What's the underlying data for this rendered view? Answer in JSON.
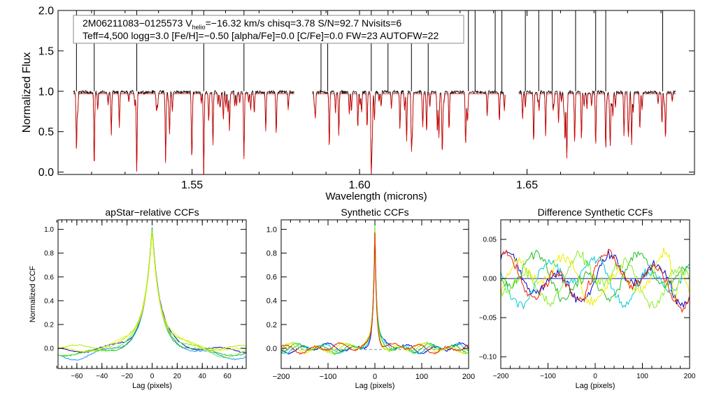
{
  "chart_data": [
    {
      "type": "line",
      "name": "spectrum",
      "xlabel": "Wavelength (microns)",
      "ylabel": "Normalized Flux",
      "xlim": [
        1.51,
        1.7
      ],
      "ylim": [
        -0.03,
        2.0
      ],
      "xticks": [
        {
          "value": 1.55,
          "label": "1.55"
        },
        {
          "value": 1.6,
          "label": "1.60"
        },
        {
          "value": 1.65,
          "label": "1.65"
        }
      ],
      "yticks": [
        {
          "value": 0.0,
          "label": "0.0"
        },
        {
          "value": 0.5,
          "label": "0.5"
        },
        {
          "value": 1.0,
          "label": "1.0"
        },
        {
          "value": 1.5,
          "label": "1.5"
        },
        {
          "value": 2.0,
          "label": "2.0"
        }
      ],
      "chips": [
        [
          1.5145,
          1.5805
        ],
        [
          1.586,
          1.6435
        ],
        [
          1.6475,
          1.6945
        ]
      ],
      "series": [
        {
          "name": "observed",
          "color": "#000000"
        },
        {
          "name": "model",
          "color": "#e00000"
        }
      ],
      "legend": {
        "id_pre": "2M06211083−0125573  V",
        "v_sub": "helio",
        "id_post": "=−16.32 km/s  chisq=3.78  S/N=92.7  Nvisits=6",
        "line2": "Teff=4,500 logg=3.0 [Fe/H]=−0.50 [alpha/Fe]=0.0 [C/Fe]=0.0 FW=23 AUTOFW=22"
      }
    },
    {
      "type": "line",
      "name": "apstar_ccf",
      "title": "apStar−relative CCFs",
      "xlabel": "Lag (pixels)",
      "ylabel": "Normalized CCF",
      "xlim": [
        -75,
        75
      ],
      "ylim": [
        -0.17,
        1.08
      ],
      "xticks": [
        {
          "value": -60,
          "label": "−60"
        },
        {
          "value": -40,
          "label": "−40"
        },
        {
          "value": -20,
          "label": "−20"
        },
        {
          "value": 0,
          "label": "0"
        },
        {
          "value": 20,
          "label": "20"
        },
        {
          "value": 40,
          "label": "40"
        },
        {
          "value": 60,
          "label": "60"
        }
      ],
      "yticks": [
        {
          "value": 0.0,
          "label": "0.0"
        },
        {
          "value": 0.2,
          "label": "0.2"
        },
        {
          "value": 0.4,
          "label": "0.4"
        },
        {
          "value": 0.6,
          "label": "0.6"
        },
        {
          "value": 0.8,
          "label": "0.8"
        },
        {
          "value": 1.0,
          "label": "1.0"
        }
      ],
      "series": [
        {
          "name": "visit 1",
          "color": "#0000cc"
        },
        {
          "name": "visit 2",
          "color": "#1e90ff"
        },
        {
          "name": "visit 3",
          "color": "#22bb22"
        },
        {
          "name": "visit 4",
          "color": "#66ee33"
        },
        {
          "name": "visit 5",
          "color": "#aaee00"
        },
        {
          "name": "visit 6",
          "color": "#eeee00"
        }
      ]
    },
    {
      "type": "line",
      "name": "synthetic_ccf",
      "title": "Synthetic CCFs",
      "xlabel": "Lag (pixels)",
      "ylabel": "",
      "xlim": [
        -200,
        200
      ],
      "ylim": [
        -0.17,
        1.08
      ],
      "xticks": [
        {
          "value": -200,
          "label": "−200"
        },
        {
          "value": -100,
          "label": "−100"
        },
        {
          "value": 0,
          "label": "0"
        },
        {
          "value": 100,
          "label": "100"
        },
        {
          "value": 200,
          "label": "200"
        }
      ],
      "yticks": [
        {
          "value": 0.0,
          "label": "0.0"
        },
        {
          "value": 0.2,
          "label": "0.2"
        },
        {
          "value": 0.4,
          "label": "0.4"
        },
        {
          "value": 0.6,
          "label": "0.6"
        },
        {
          "value": 0.8,
          "label": "0.8"
        },
        {
          "value": 1.0,
          "label": "1.0"
        }
      ],
      "series": [
        {
          "name": "visit 1",
          "color": "#0000cc"
        },
        {
          "name": "visit 2",
          "color": "#00cccc"
        },
        {
          "name": "visit 3",
          "color": "#22bb22"
        },
        {
          "name": "visit 4",
          "color": "#88ee22"
        },
        {
          "name": "visit 5",
          "color": "#eeee00"
        },
        {
          "name": "visit 6",
          "color": "#ee2200"
        }
      ]
    },
    {
      "type": "line",
      "name": "difference_ccf",
      "title": "Difference Synthetic CCFs",
      "xlabel": "Lag (pixels)",
      "ylabel": "",
      "xlim": [
        -200,
        200
      ],
      "ylim": [
        -0.115,
        0.075
      ],
      "xticks": [
        {
          "value": -200,
          "label": "−200"
        },
        {
          "value": -100,
          "label": "−100"
        },
        {
          "value": 0,
          "label": "0"
        },
        {
          "value": 100,
          "label": "100"
        },
        {
          "value": 200,
          "label": "200"
        }
      ],
      "yticks": [
        {
          "value": -0.1,
          "label": "−0.10"
        },
        {
          "value": -0.05,
          "label": "−0.05"
        },
        {
          "value": 0.0,
          "label": "0.00"
        },
        {
          "value": 0.05,
          "label": "0.05"
        }
      ],
      "series": [
        {
          "name": "visit 1",
          "color": "#0000cc"
        },
        {
          "name": "visit 2",
          "color": "#00cccc"
        },
        {
          "name": "visit 3",
          "color": "#22bb22"
        },
        {
          "name": "visit 4",
          "color": "#88ee22"
        },
        {
          "name": "visit 5",
          "color": "#eeee00"
        },
        {
          "name": "visit 6",
          "color": "#ee2200"
        }
      ]
    }
  ]
}
